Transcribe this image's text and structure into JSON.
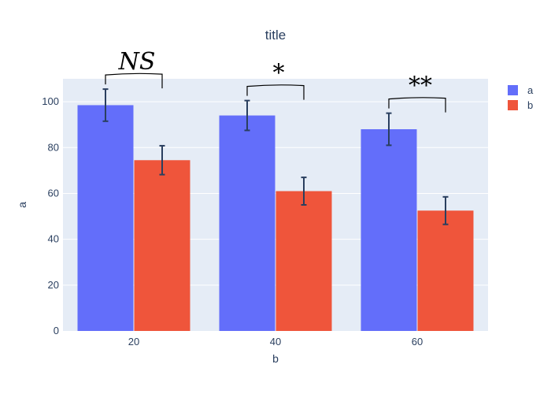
{
  "chart_data": {
    "type": "bar",
    "title": "title",
    "xlabel": "b",
    "ylabel": "a",
    "categories": [
      "20",
      "40",
      "60"
    ],
    "ylim": [
      0,
      110
    ],
    "yticks": [
      0,
      20,
      40,
      60,
      80,
      100
    ],
    "grid": true,
    "legend_position": "top-right",
    "series": [
      {
        "name": "a",
        "color": "#636efa",
        "values": [
          98.5,
          94,
          88
        ],
        "error": [
          7,
          6.5,
          7
        ]
      },
      {
        "name": "b",
        "color": "#ef553b",
        "values": [
          74.5,
          61,
          52.5
        ],
        "error": [
          6.3,
          6,
          6
        ]
      }
    ],
    "annotations": [
      {
        "category": "20",
        "text": "NS"
      },
      {
        "category": "40",
        "text": "*"
      },
      {
        "category": "60",
        "text": "**"
      }
    ],
    "colors": {
      "plot_bg": "#e5ecf6",
      "grid": "#ffffff",
      "text": "#2a3f5f",
      "error_bar": "#2a3f5f",
      "annotation": "#000000"
    }
  }
}
